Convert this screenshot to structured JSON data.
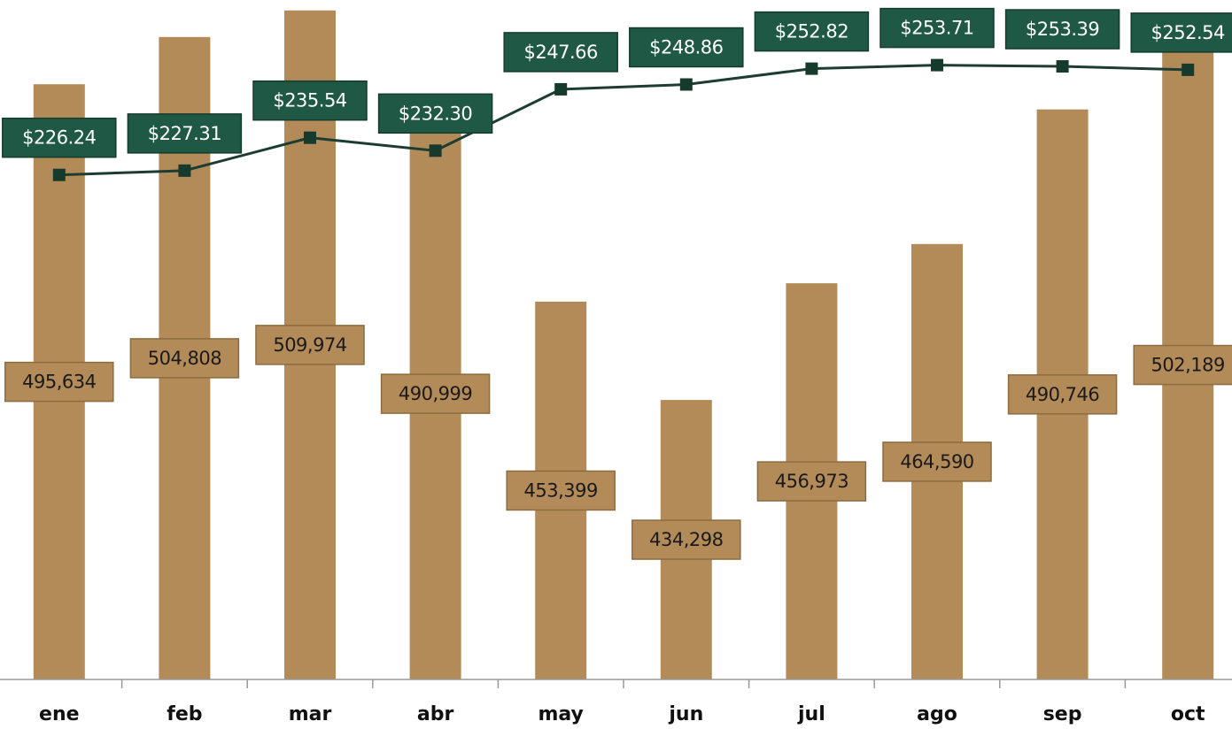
{
  "chart_data": {
    "type": "bar",
    "categories": [
      "ene",
      "feb",
      "mar",
      "abr",
      "may",
      "jun",
      "jul",
      "ago",
      "sep",
      "oct"
    ],
    "ylim": [
      380000,
      512000
    ],
    "y2lim": [
      100,
      270
    ],
    "series": [
      {
        "type": "bar",
        "color": "#b38b59",
        "values": [
          495634,
          504808,
          509974,
          490999,
          453399,
          434298,
          456973,
          464590,
          490746,
          502189
        ],
        "value_labels": [
          "495,634",
          "504,808",
          "509,974",
          "490,999",
          "453,399",
          "434,298",
          "456,973",
          "464,590",
          "490,746",
          "502,189"
        ]
      },
      {
        "type": "line",
        "axis": "y2",
        "color": "#1e3d32",
        "values": [
          226.24,
          227.31,
          235.54,
          232.3,
          247.66,
          248.86,
          252.82,
          253.71,
          253.39,
          252.54
        ],
        "value_labels": [
          "$226.24",
          "$227.31",
          "$235.54",
          "$232.30",
          "$247.66",
          "$248.86",
          "$252.82",
          "$253.71",
          "$253.39",
          "$252.54"
        ]
      }
    ]
  }
}
